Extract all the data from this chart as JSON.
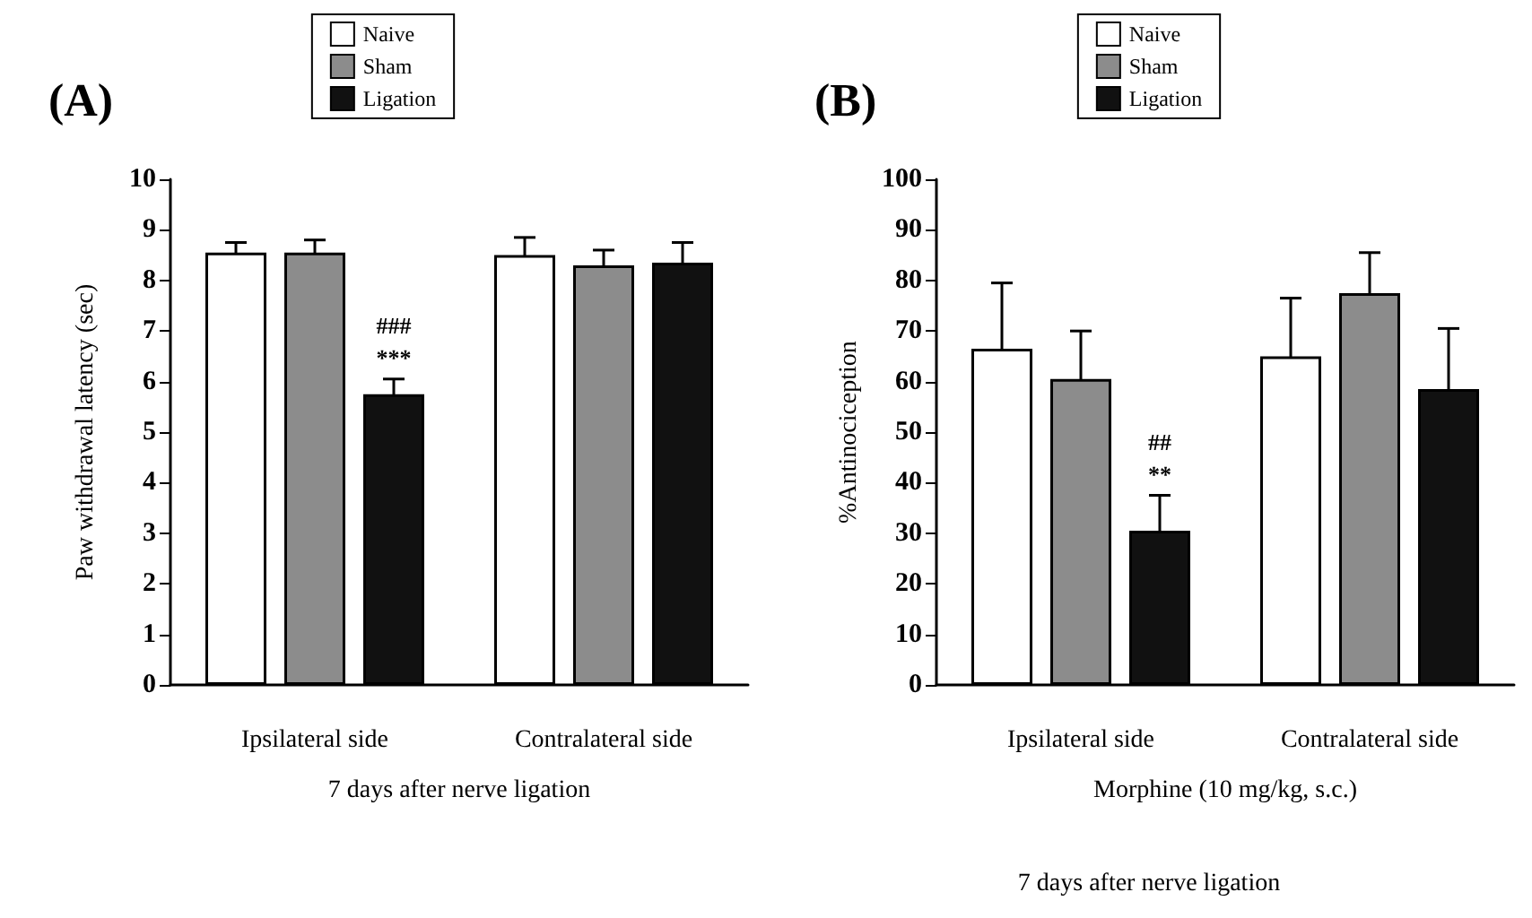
{
  "chart_data": [
    {
      "type": "bar",
      "title": "(A)",
      "xlabel": "7 days after nerve ligation",
      "ylabel": "Paw withdrawal latency (sec)",
      "categories": [
        "Ipsilateral side",
        "Contralateral side"
      ],
      "ylim": [
        0,
        10
      ],
      "yticks": [
        0,
        1,
        2,
        3,
        4,
        5,
        6,
        7,
        8,
        9,
        10
      ],
      "grid": false,
      "legend": "top",
      "series": [
        {
          "name": "Naive",
          "color": "#ffffff",
          "values": [
            8.55,
            8.5
          ],
          "errors": [
            0.2,
            0.35
          ]
        },
        {
          "name": "Sham",
          "color": "#8c8c8c",
          "values": [
            8.55,
            8.3
          ],
          "errors": [
            0.25,
            0.3
          ]
        },
        {
          "name": "Ligation",
          "color": "#111111",
          "values": [
            5.75,
            8.35
          ],
          "errors": [
            0.3,
            0.4
          ]
        }
      ],
      "annotations": [
        "###",
        "***"
      ]
    },
    {
      "type": "bar",
      "title": "(B)",
      "xlabel": "Morphine (10 mg/kg, s.c.)",
      "ylabel": "%Antinociception",
      "categories": [
        "Ipsilateral side",
        "Contralateral side"
      ],
      "ylim": [
        0,
        100
      ],
      "yticks": [
        0,
        10,
        20,
        30,
        40,
        50,
        60,
        70,
        80,
        90,
        100
      ],
      "grid": false,
      "legend": "top",
      "series": [
        {
          "name": "Naive",
          "color": "#ffffff",
          "values": [
            66.5,
            65
          ],
          "errors": [
            13,
            11.5
          ]
        },
        {
          "name": "Sham",
          "color": "#8c8c8c",
          "values": [
            60.5,
            77.5
          ],
          "errors": [
            9.5,
            8
          ]
        },
        {
          "name": "Ligation",
          "color": "#111111",
          "values": [
            30.5,
            58.5
          ],
          "errors": [
            7,
            12
          ]
        }
      ],
      "annotations": [
        "##",
        "**"
      ],
      "subtitle": "7 days after nerve ligation"
    }
  ]
}
